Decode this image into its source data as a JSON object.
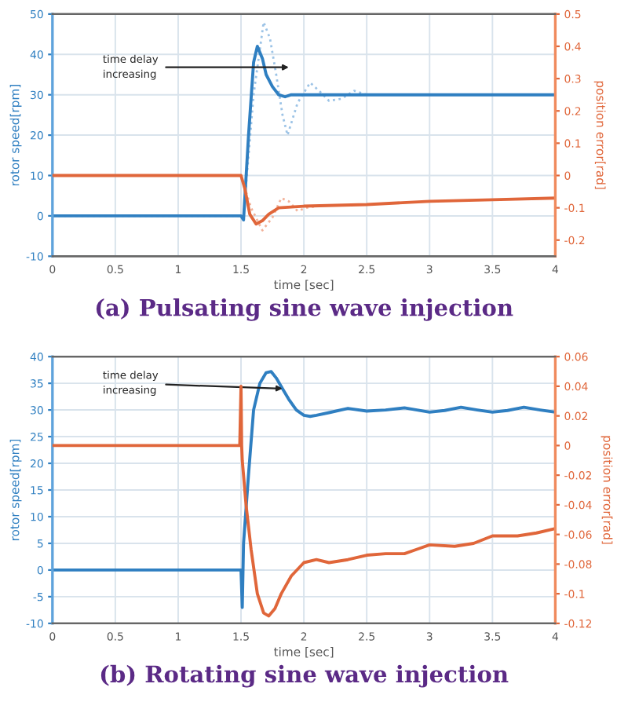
{
  "chart_data": [
    {
      "type": "line",
      "title": "(a) Pulsating sine wave injection",
      "xlabel": "time [sec]",
      "ylabel": "rotor speed[rpm]",
      "y2label": "position error[rad]",
      "xlim": [
        0,
        4
      ],
      "xticks": [
        0,
        0.5,
        1,
        1.5,
        2,
        2.5,
        3,
        3.5,
        4
      ],
      "ylim": [
        -10,
        50
      ],
      "yticks": [
        -10,
        0,
        10,
        20,
        30,
        40,
        50
      ],
      "y2lim": [
        -0.25,
        0.5
      ],
      "y2ticks": [
        -0.2,
        -0.1,
        0,
        0.1,
        0.2,
        0.3,
        0.4,
        0.5
      ],
      "grid": true,
      "annotations": [
        "time delay\nincreasing"
      ],
      "series": [
        {
          "color": "#9cc3e6",
          "line_style": "dotted",
          "x": [
            0,
            1.52,
            1.6,
            1.68,
            1.73,
            1.78,
            1.83,
            1.87,
            1.95,
            2.05,
            2.12,
            2.2,
            2.3,
            2.4,
            2.5,
            2.6
          ],
          "values": [
            0,
            0,
            30,
            48,
            44,
            35,
            25,
            20,
            28,
            33,
            31,
            28.5,
            29,
            31,
            30,
            30
          ]
        },
        {
          "color": "#f2b29a",
          "line_style": "dotted",
          "axis": "y2",
          "x": [
            1.5,
            1.58,
            1.67,
            1.75,
            1.82,
            1.88,
            1.95,
            2.02,
            2.1
          ],
          "values": [
            0,
            -0.1,
            -0.17,
            -0.13,
            -0.07,
            -0.08,
            -0.11,
            -0.1,
            -0.095
          ]
        },
        {
          "color": "#2f7fc1",
          "line_style": "solid",
          "x": [
            0,
            1.5,
            1.52,
            1.56,
            1.6,
            1.63,
            1.67,
            1.7,
            1.75,
            1.8,
            1.85,
            1.9,
            4
          ],
          "values": [
            0,
            0,
            -1,
            20,
            38,
            42,
            39,
            35,
            32,
            30,
            29.5,
            30,
            30
          ]
        },
        {
          "color": "#e0663a",
          "line_style": "solid",
          "axis": "y2",
          "x": [
            0,
            1.5,
            1.53,
            1.57,
            1.62,
            1.67,
            1.72,
            1.8,
            2.0,
            2.5,
            3,
            3.5,
            4
          ],
          "values": [
            0,
            0,
            -0.04,
            -0.12,
            -0.15,
            -0.14,
            -0.12,
            -0.1,
            -0.095,
            -0.09,
            -0.08,
            -0.075,
            -0.07
          ]
        }
      ]
    },
    {
      "type": "line",
      "title": "(b) Rotating sine wave injection",
      "xlabel": "time [sec]",
      "ylabel": "rotor speed[rpm]",
      "y2label": "position error[rad]",
      "xlim": [
        0,
        4
      ],
      "xticks": [
        0,
        0.5,
        1,
        1.5,
        2,
        2.5,
        3,
        3.5,
        4
      ],
      "ylim": [
        -10,
        40
      ],
      "yticks": [
        -10,
        -5,
        0,
        5,
        10,
        15,
        20,
        25,
        30,
        35,
        40
      ],
      "y2lim": [
        -0.12,
        0.06
      ],
      "y2ticks": [
        -0.12,
        -0.1,
        -0.08,
        -0.06,
        -0.04,
        -0.02,
        0,
        0.02,
        0.04,
        0.06
      ],
      "grid": true,
      "annotations": [
        {
          "text": "time delay\nincreasing",
          "x": 1.83,
          "y": 34
        }
      ],
      "series": [
        {
          "color": "#2f7fc1",
          "line_style": "solid",
          "x": [
            0,
            1.5,
            1.51,
            1.52,
            1.56,
            1.6,
            1.65,
            1.7,
            1.74,
            1.78,
            1.83,
            1.88,
            1.94,
            2.0,
            2.05,
            2.1,
            2.2,
            2.35,
            2.5,
            2.65,
            2.8,
            2.9,
            3.0,
            3.12,
            3.25,
            3.38,
            3.5,
            3.62,
            3.75,
            3.88,
            4
          ],
          "values": [
            0,
            0,
            -7,
            5,
            18,
            30,
            35,
            37,
            37.2,
            36,
            34,
            32,
            30,
            29,
            28.8,
            29,
            29.5,
            30.3,
            29.8,
            30,
            30.4,
            30,
            29.6,
            29.9,
            30.5,
            30,
            29.6,
            29.9,
            30.5,
            30,
            29.6
          ]
        },
        {
          "color": "#e0663a",
          "line_style": "solid",
          "axis": "y2",
          "x": [
            0,
            1.49,
            1.5,
            1.505,
            1.51,
            1.54,
            1.58,
            1.63,
            1.68,
            1.72,
            1.77,
            1.82,
            1.9,
            2.0,
            2.1,
            2.2,
            2.35,
            2.5,
            2.65,
            2.8,
            2.9,
            3.0,
            3.2,
            3.35,
            3.5,
            3.7,
            3.85,
            4
          ],
          "values": [
            0,
            0,
            0.04,
            0.0,
            -0.01,
            -0.04,
            -0.07,
            -0.1,
            -0.113,
            -0.115,
            -0.11,
            -0.1,
            -0.088,
            -0.079,
            -0.077,
            -0.079,
            -0.077,
            -0.074,
            -0.073,
            -0.073,
            -0.07,
            -0.067,
            -0.068,
            -0.066,
            -0.061,
            -0.061,
            -0.059,
            -0.056
          ]
        }
      ]
    }
  ]
}
